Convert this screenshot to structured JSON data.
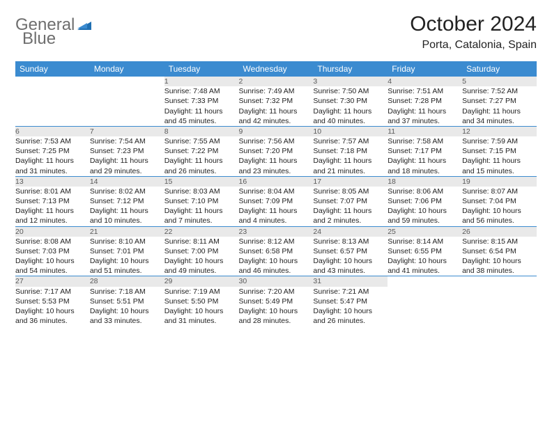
{
  "brand": {
    "text_a": "General",
    "text_b": "Blue"
  },
  "title": "October 2024",
  "location": "Porta, Catalonia, Spain",
  "colors": {
    "header_bg": "#3b8bd0",
    "header_fg": "#ffffff",
    "daynum_bg": "#e9e9e9",
    "daynum_fg": "#5a5a5a",
    "rule": "#3b8bd0",
    "logo_gray": "#6e6e6e",
    "logo_blue": "#1f6fb2"
  },
  "day_headers": [
    "Sunday",
    "Monday",
    "Tuesday",
    "Wednesday",
    "Thursday",
    "Friday",
    "Saturday"
  ],
  "weeks": [
    [
      null,
      null,
      {
        "n": "1",
        "sr": "Sunrise: 7:48 AM",
        "ss": "Sunset: 7:33 PM",
        "d1": "Daylight: 11 hours",
        "d2": "and 45 minutes."
      },
      {
        "n": "2",
        "sr": "Sunrise: 7:49 AM",
        "ss": "Sunset: 7:32 PM",
        "d1": "Daylight: 11 hours",
        "d2": "and 42 minutes."
      },
      {
        "n": "3",
        "sr": "Sunrise: 7:50 AM",
        "ss": "Sunset: 7:30 PM",
        "d1": "Daylight: 11 hours",
        "d2": "and 40 minutes."
      },
      {
        "n": "4",
        "sr": "Sunrise: 7:51 AM",
        "ss": "Sunset: 7:28 PM",
        "d1": "Daylight: 11 hours",
        "d2": "and 37 minutes."
      },
      {
        "n": "5",
        "sr": "Sunrise: 7:52 AM",
        "ss": "Sunset: 7:27 PM",
        "d1": "Daylight: 11 hours",
        "d2": "and 34 minutes."
      }
    ],
    [
      {
        "n": "6",
        "sr": "Sunrise: 7:53 AM",
        "ss": "Sunset: 7:25 PM",
        "d1": "Daylight: 11 hours",
        "d2": "and 31 minutes."
      },
      {
        "n": "7",
        "sr": "Sunrise: 7:54 AM",
        "ss": "Sunset: 7:23 PM",
        "d1": "Daylight: 11 hours",
        "d2": "and 29 minutes."
      },
      {
        "n": "8",
        "sr": "Sunrise: 7:55 AM",
        "ss": "Sunset: 7:22 PM",
        "d1": "Daylight: 11 hours",
        "d2": "and 26 minutes."
      },
      {
        "n": "9",
        "sr": "Sunrise: 7:56 AM",
        "ss": "Sunset: 7:20 PM",
        "d1": "Daylight: 11 hours",
        "d2": "and 23 minutes."
      },
      {
        "n": "10",
        "sr": "Sunrise: 7:57 AM",
        "ss": "Sunset: 7:18 PM",
        "d1": "Daylight: 11 hours",
        "d2": "and 21 minutes."
      },
      {
        "n": "11",
        "sr": "Sunrise: 7:58 AM",
        "ss": "Sunset: 7:17 PM",
        "d1": "Daylight: 11 hours",
        "d2": "and 18 minutes."
      },
      {
        "n": "12",
        "sr": "Sunrise: 7:59 AM",
        "ss": "Sunset: 7:15 PM",
        "d1": "Daylight: 11 hours",
        "d2": "and 15 minutes."
      }
    ],
    [
      {
        "n": "13",
        "sr": "Sunrise: 8:01 AM",
        "ss": "Sunset: 7:13 PM",
        "d1": "Daylight: 11 hours",
        "d2": "and 12 minutes."
      },
      {
        "n": "14",
        "sr": "Sunrise: 8:02 AM",
        "ss": "Sunset: 7:12 PM",
        "d1": "Daylight: 11 hours",
        "d2": "and 10 minutes."
      },
      {
        "n": "15",
        "sr": "Sunrise: 8:03 AM",
        "ss": "Sunset: 7:10 PM",
        "d1": "Daylight: 11 hours",
        "d2": "and 7 minutes."
      },
      {
        "n": "16",
        "sr": "Sunrise: 8:04 AM",
        "ss": "Sunset: 7:09 PM",
        "d1": "Daylight: 11 hours",
        "d2": "and 4 minutes."
      },
      {
        "n": "17",
        "sr": "Sunrise: 8:05 AM",
        "ss": "Sunset: 7:07 PM",
        "d1": "Daylight: 11 hours",
        "d2": "and 2 minutes."
      },
      {
        "n": "18",
        "sr": "Sunrise: 8:06 AM",
        "ss": "Sunset: 7:06 PM",
        "d1": "Daylight: 10 hours",
        "d2": "and 59 minutes."
      },
      {
        "n": "19",
        "sr": "Sunrise: 8:07 AM",
        "ss": "Sunset: 7:04 PM",
        "d1": "Daylight: 10 hours",
        "d2": "and 56 minutes."
      }
    ],
    [
      {
        "n": "20",
        "sr": "Sunrise: 8:08 AM",
        "ss": "Sunset: 7:03 PM",
        "d1": "Daylight: 10 hours",
        "d2": "and 54 minutes."
      },
      {
        "n": "21",
        "sr": "Sunrise: 8:10 AM",
        "ss": "Sunset: 7:01 PM",
        "d1": "Daylight: 10 hours",
        "d2": "and 51 minutes."
      },
      {
        "n": "22",
        "sr": "Sunrise: 8:11 AM",
        "ss": "Sunset: 7:00 PM",
        "d1": "Daylight: 10 hours",
        "d2": "and 49 minutes."
      },
      {
        "n": "23",
        "sr": "Sunrise: 8:12 AM",
        "ss": "Sunset: 6:58 PM",
        "d1": "Daylight: 10 hours",
        "d2": "and 46 minutes."
      },
      {
        "n": "24",
        "sr": "Sunrise: 8:13 AM",
        "ss": "Sunset: 6:57 PM",
        "d1": "Daylight: 10 hours",
        "d2": "and 43 minutes."
      },
      {
        "n": "25",
        "sr": "Sunrise: 8:14 AM",
        "ss": "Sunset: 6:55 PM",
        "d1": "Daylight: 10 hours",
        "d2": "and 41 minutes."
      },
      {
        "n": "26",
        "sr": "Sunrise: 8:15 AM",
        "ss": "Sunset: 6:54 PM",
        "d1": "Daylight: 10 hours",
        "d2": "and 38 minutes."
      }
    ],
    [
      {
        "n": "27",
        "sr": "Sunrise: 7:17 AM",
        "ss": "Sunset: 5:53 PM",
        "d1": "Daylight: 10 hours",
        "d2": "and 36 minutes."
      },
      {
        "n": "28",
        "sr": "Sunrise: 7:18 AM",
        "ss": "Sunset: 5:51 PM",
        "d1": "Daylight: 10 hours",
        "d2": "and 33 minutes."
      },
      {
        "n": "29",
        "sr": "Sunrise: 7:19 AM",
        "ss": "Sunset: 5:50 PM",
        "d1": "Daylight: 10 hours",
        "d2": "and 31 minutes."
      },
      {
        "n": "30",
        "sr": "Sunrise: 7:20 AM",
        "ss": "Sunset: 5:49 PM",
        "d1": "Daylight: 10 hours",
        "d2": "and 28 minutes."
      },
      {
        "n": "31",
        "sr": "Sunrise: 7:21 AM",
        "ss": "Sunset: 5:47 PM",
        "d1": "Daylight: 10 hours",
        "d2": "and 26 minutes."
      },
      null,
      null
    ]
  ]
}
